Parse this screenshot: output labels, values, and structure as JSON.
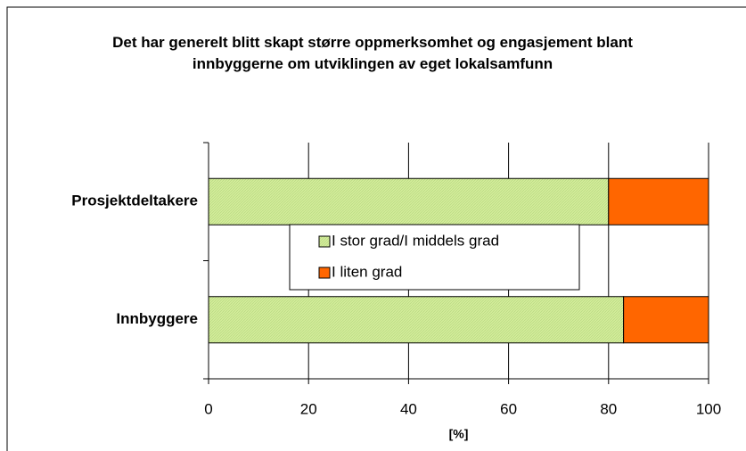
{
  "chart_data": {
    "type": "stacked_barh",
    "title": "Det har generelt blitt skapt større oppmerksomhet og engasjement blant innbyggerne om utviklingen av eget lokalsamfunn",
    "categories": [
      "Prosjektdeltakere",
      "Innbyggere"
    ],
    "series": [
      {
        "name": "I stor grad/I middels grad",
        "color": "#d3ec9a",
        "values": [
          80,
          83
        ]
      },
      {
        "name": "I liten grad",
        "color": "#ff6600",
        "values": [
          20,
          17
        ]
      }
    ],
    "xlabel": "[%]",
    "xlim": [
      0,
      100
    ],
    "xticks": [
      0,
      20,
      40,
      60,
      80,
      100
    ],
    "grid": true
  }
}
